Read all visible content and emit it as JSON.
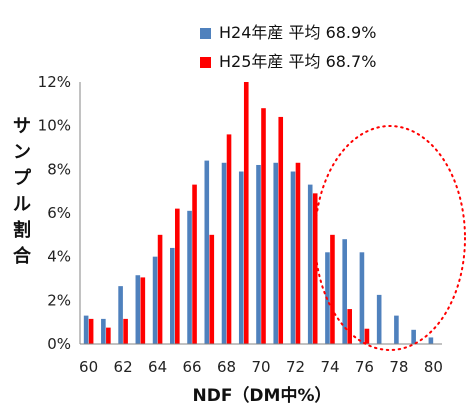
{
  "chart_data": {
    "type": "bar",
    "xlabel": "NDF（DM中%）",
    "ylabel": "サンプル割合",
    "x": [
      60,
      61,
      62,
      63,
      64,
      65,
      66,
      67,
      68,
      69,
      70,
      71,
      72,
      73,
      74,
      75,
      76,
      77,
      78,
      79,
      80
    ],
    "x_ticks": [
      "60",
      "62",
      "64",
      "66",
      "68",
      "70",
      "72",
      "74",
      "76",
      "78",
      "80"
    ],
    "y_ticks": [
      "0%",
      "2%",
      "4%",
      "6%",
      "8%",
      "10%",
      "12%"
    ],
    "ylim": [
      0,
      12
    ],
    "grid": false,
    "legend_position": "top-right",
    "series": [
      {
        "name": "H24年産 平均 68.9%",
        "color": "#4f81bd",
        "values": [
          1.3,
          1.15,
          2.65,
          3.15,
          4.0,
          4.4,
          6.1,
          8.4,
          8.3,
          7.9,
          8.2,
          8.3,
          7.9,
          7.3,
          4.2,
          4.8,
          4.2,
          2.25,
          1.3,
          0.65,
          0.3
        ]
      },
      {
        "name": "H25年産 平均 68.7%",
        "color": "#ff0000",
        "values": [
          1.15,
          0.75,
          1.15,
          3.05,
          5.0,
          6.2,
          7.3,
          5.0,
          9.6,
          12.0,
          10.8,
          10.4,
          8.3,
          6.9,
          5.0,
          1.6,
          0.7,
          0.0,
          0.0,
          0.0,
          0.0
        ]
      }
    ],
    "annotation": {
      "shape": "dotted-ellipse",
      "color": "#ff0000",
      "x_range": [
        73,
        80
      ]
    }
  }
}
